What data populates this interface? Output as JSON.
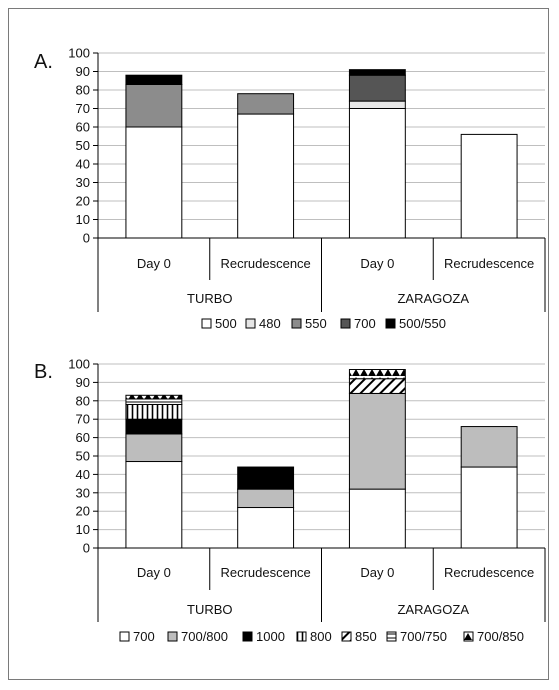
{
  "chart_data": [
    {
      "type": "bar",
      "stacked": true,
      "panel_label": "A.",
      "categories": [
        "Day 0",
        "Recrudescence",
        "Day 0",
        "Recrudescence"
      ],
      "groups": [
        "TURBO",
        "ZARAGOZA"
      ],
      "ylim": [
        0,
        100
      ],
      "yticks": [
        0,
        10,
        20,
        30,
        40,
        50,
        60,
        70,
        80,
        90,
        100
      ],
      "grid": true,
      "legend_position": "bottom",
      "series": [
        {
          "name": "500",
          "values": [
            60,
            67,
            70,
            56
          ]
        },
        {
          "name": "480",
          "values": [
            0,
            0,
            4,
            0
          ]
        },
        {
          "name": "550",
          "values": [
            23,
            11,
            0,
            0
          ]
        },
        {
          "name": "700",
          "values": [
            0,
            0,
            14,
            0
          ]
        },
        {
          "name": "500/550",
          "values": [
            5,
            0,
            3,
            0
          ]
        }
      ]
    },
    {
      "type": "bar",
      "stacked": true,
      "panel_label": "B.",
      "categories": [
        "Day 0",
        "Recrudescence",
        "Day 0",
        "Recrudescence"
      ],
      "groups": [
        "TURBO",
        "ZARAGOZA"
      ],
      "ylim": [
        0,
        100
      ],
      "yticks": [
        0,
        10,
        20,
        30,
        40,
        50,
        60,
        70,
        80,
        90,
        100
      ],
      "grid": true,
      "legend_position": "bottom",
      "series": [
        {
          "name": "700",
          "values": [
            47,
            22,
            32,
            44
          ]
        },
        {
          "name": "700/800",
          "values": [
            15,
            10,
            52,
            22
          ]
        },
        {
          "name": "1000",
          "values": [
            8,
            12,
            0,
            0
          ]
        },
        {
          "name": "800",
          "values": [
            8,
            0,
            0,
            0
          ]
        },
        {
          "name": "850",
          "values": [
            0,
            0,
            8,
            0
          ]
        },
        {
          "name": "700/750",
          "values": [
            3,
            0,
            0,
            0
          ]
        },
        {
          "name": "700/850",
          "values": [
            2,
            0,
            5,
            0
          ]
        }
      ]
    }
  ],
  "styles": {
    "500": {
      "fill": "#ffffff",
      "pattern": "none"
    },
    "480": {
      "fill": "#e6e6e6",
      "pattern": "none"
    },
    "550": {
      "fill": "#8c8c8c",
      "pattern": "none"
    },
    "700A": {
      "fill": "#555555",
      "pattern": "none"
    },
    "500/550": {
      "fill": "#000000",
      "pattern": "none"
    },
    "700": {
      "fill": "#ffffff",
      "pattern": "none"
    },
    "700/800": {
      "fill": "#bdbdbd",
      "pattern": "none"
    },
    "1000": {
      "fill": "#000000",
      "pattern": "none"
    },
    "800": {
      "fill": "#ffffff",
      "pattern": "vertical-lines"
    },
    "850": {
      "fill": "#ffffff",
      "pattern": "diagonal-lines"
    },
    "700/750": {
      "fill": "#ffffff",
      "pattern": "horizontal-lines"
    },
    "700/850": {
      "fill": "#ffffff",
      "pattern": "triangles"
    },
    "grid_color": "#bfbfbf",
    "border_color": "#000000"
  }
}
